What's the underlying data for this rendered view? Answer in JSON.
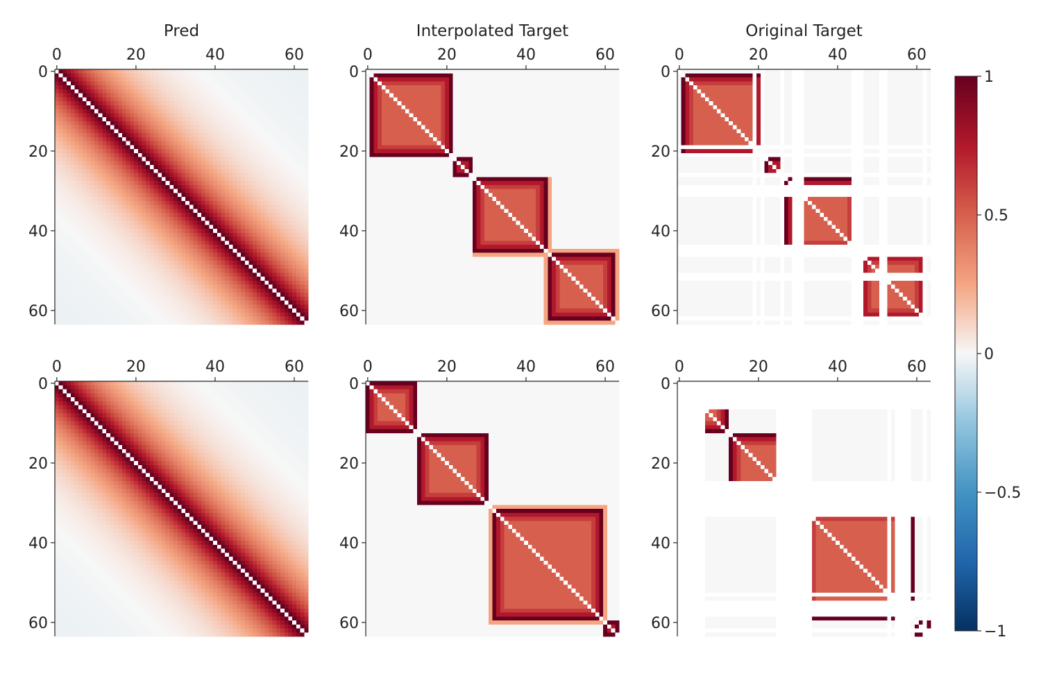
{
  "chart_data": {
    "type": "heatmap",
    "matrix_size": 64,
    "axis_ticks": [
      0,
      20,
      40,
      60
    ],
    "colorbar": {
      "range": [
        -1,
        1
      ],
      "ticks": [
        1,
        0.5,
        0,
        -0.5,
        -1
      ],
      "tick_labels": [
        "1",
        "0.5",
        "0",
        "−0.5",
        "−1"
      ],
      "colormap": "RdBu_r",
      "colors": {
        "pos_1": "#67001f",
        "pos_075": "#b2182b",
        "pos_05": "#d6604d",
        "pos_025": "#f4a582",
        "zero": "#f7f7f7",
        "neg_025": "#92c5de",
        "neg_05": "#4393c3",
        "neg_075": "#2166ac",
        "neg_1": "#053061"
      }
    },
    "column_titles": [
      "Pred",
      "Interpolated Target",
      "Original Target"
    ],
    "rows": [
      {
        "pred": {
          "diag_value": 1.0,
          "decay_length": 22,
          "far_value": -0.03
        },
        "interpolated_target": {
          "blocks": [
            {
              "start": 1,
              "end": 21
            },
            {
              "start": 22,
              "end": 26
            },
            {
              "start": 27,
              "end": 45
            },
            {
              "start": 46,
              "end": 62
            }
          ],
          "halo_ranges": [
            [
              27,
              46
            ],
            [
              45,
              63
            ]
          ],
          "masked_indices": []
        },
        "original_target": {
          "blocks": [
            {
              "start": 1,
              "end": 21
            },
            {
              "start": 22,
              "end": 26
            },
            {
              "start": 27,
              "end": 45
            },
            {
              "start": 46,
              "end": 62
            }
          ],
          "masked_indices": [
            19,
            21,
            26,
            29,
            30,
            31,
            44,
            45,
            46,
            51,
            52,
            62
          ]
        }
      },
      {
        "pred": {
          "diag_value": 1.0,
          "decay_length": 22,
          "far_value": -0.03
        },
        "interpolated_target": {
          "blocks": [
            {
              "start": 0,
              "end": 12
            },
            {
              "start": 13,
              "end": 30
            },
            {
              "start": 32,
              "end": 59
            },
            {
              "start": 60,
              "end": 63
            }
          ],
          "halo_ranges": [
            [
              31,
              60
            ]
          ],
          "masked_indices": []
        },
        "original_target": {
          "blocks": [
            {
              "start": 0,
              "end": 12
            },
            {
              "start": 13,
              "end": 30
            },
            {
              "start": 32,
              "end": 59
            },
            {
              "start": 60,
              "end": 63
            }
          ],
          "masked_indices": [
            0,
            1,
            2,
            3,
            4,
            5,
            6,
            25,
            26,
            27,
            28,
            29,
            30,
            31,
            32,
            33,
            53,
            55,
            56,
            57,
            58,
            62
          ]
        }
      }
    ]
  }
}
